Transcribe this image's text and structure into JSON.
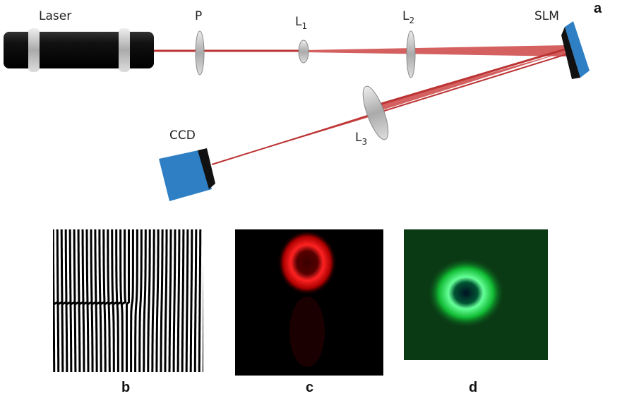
{
  "setup": {
    "components": [
      {
        "label": "Laser"
      },
      {
        "label": "P"
      },
      {
        "label": "L",
        "sub": "1"
      },
      {
        "label": "L",
        "sub": "2"
      },
      {
        "label": "SLM"
      },
      {
        "label": "L",
        "sub": "3"
      },
      {
        "label": "CCD"
      }
    ]
  },
  "panels": [
    {
      "label": "a"
    },
    {
      "label": "b"
    },
    {
      "label": "c"
    },
    {
      "label": "d"
    }
  ]
}
